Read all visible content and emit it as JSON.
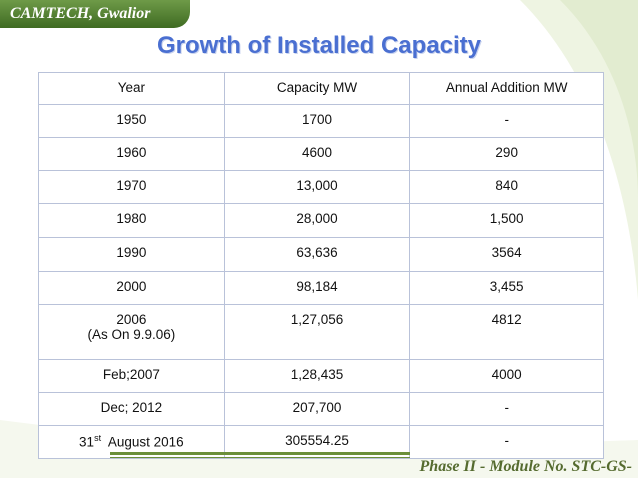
{
  "header": {
    "org_label": "CAMTECH, Gwalior"
  },
  "title": "Growth of Installed Capacity",
  "table": {
    "headers": [
      "Year",
      "Capacity  MW",
      "Annual Addition  MW"
    ],
    "rows": [
      {
        "year": "1950",
        "capacity": "1700",
        "addition": "-"
      },
      {
        "year": "1960",
        "capacity": "4600",
        "addition": "290"
      },
      {
        "year": "1970",
        "capacity": "13,000",
        "addition": "840"
      },
      {
        "year": "1980",
        "capacity": "28,000",
        "addition": "1,500"
      },
      {
        "year": "1990",
        "capacity": "63,636",
        "addition": "3564"
      },
      {
        "year": "2000",
        "capacity": "98,184",
        "addition": "3,455"
      },
      {
        "year": "2006",
        "year_note": "(As On 9.9.06)",
        "capacity": "1,27,056",
        "addition": "4812"
      },
      {
        "year": "Feb;2007",
        "capacity": "1,28,435",
        "addition": "4000"
      },
      {
        "year": "Dec; 2012",
        "capacity": "207,700",
        "addition": "-"
      },
      {
        "year_prefix": "31",
        "year_sup": "st",
        "year_suffix": "  August 2016",
        "capacity": "305554.25",
        "addition": "-"
      }
    ]
  },
  "footer": {
    "module_label": "Phase II - Module No. STC-GS-"
  },
  "colors": {
    "accent_green": "#6b8f3a",
    "title_blue": "#4a6fd1",
    "border": "#b9c2d9"
  }
}
